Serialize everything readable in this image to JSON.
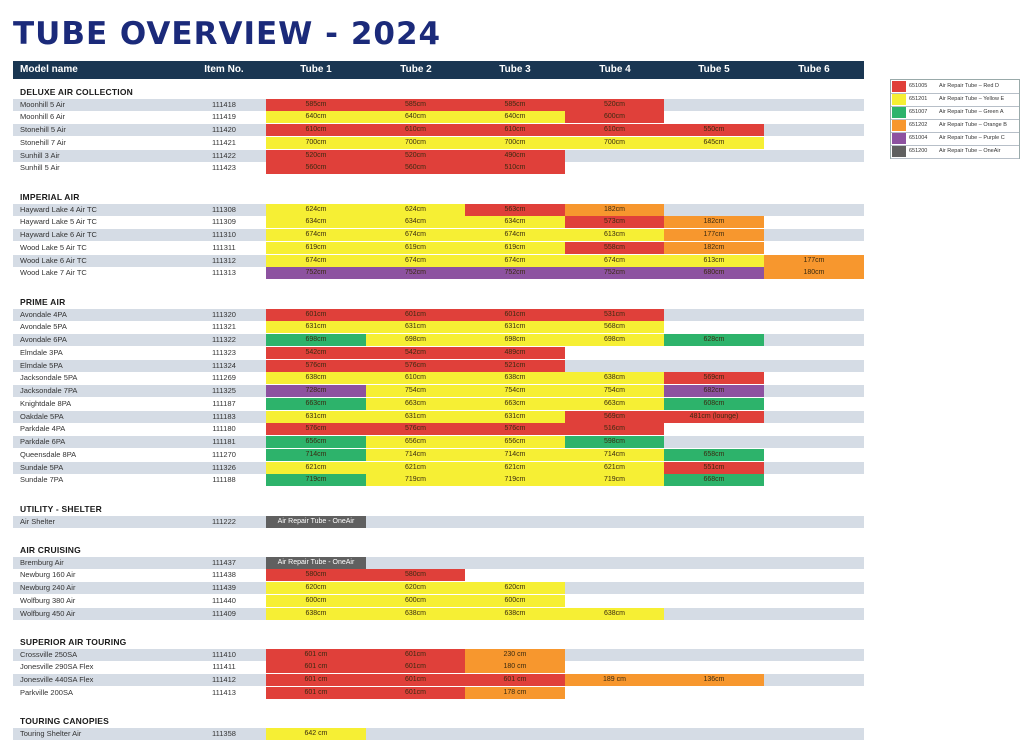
{
  "title": "TUBE OVERVIEW - 2024",
  "headers": [
    "Model name",
    "Item No.",
    "Tube 1",
    "Tube 2",
    "Tube 3",
    "Tube 4",
    "Tube 5",
    "Tube 6"
  ],
  "colors": {
    "R": "#e0403a",
    "Y": "#f6ef34",
    "G": "#2db36b",
    "O": "#f7972e",
    "P": "#8d52a0",
    "D": "#606060",
    "header": "#1a3652",
    "shade": "#d5dce5",
    "title": "#1b2a7a"
  },
  "legend": [
    {
      "code": "651005",
      "name": "Air Repair Tube – Red D",
      "color": "R"
    },
    {
      "code": "651201",
      "name": "Air Repair Tube – Yellow E",
      "color": "Y"
    },
    {
      "code": "651007",
      "name": "Air Repair Tube – Green A",
      "color": "G"
    },
    {
      "code": "651202",
      "name": "Air Repair Tube – Orange B",
      "color": "O"
    },
    {
      "code": "651004",
      "name": "Air Repair Tube – Purple C",
      "color": "P"
    },
    {
      "code": "651200",
      "name": "Air Repair Tube – OneAir",
      "color": "D"
    }
  ],
  "sections": [
    {
      "title": "DELUXE AIR COLLECTION",
      "rows": [
        {
          "name": "Moonhill 5 Air",
          "item": "111418",
          "tubes": [
            [
              "585cm",
              "R"
            ],
            [
              "585cm",
              "R"
            ],
            [
              "585cm",
              "R"
            ],
            [
              "520cm",
              "R"
            ]
          ]
        },
        {
          "name": "Moonhill 6 Air",
          "item": "111419",
          "tubes": [
            [
              "640cm",
              "Y"
            ],
            [
              "640cm",
              "Y"
            ],
            [
              "640cm",
              "Y"
            ],
            [
              "600cm",
              "R"
            ]
          ]
        },
        {
          "name": "Stonehill 5 Air",
          "item": "111420",
          "tubes": [
            [
              "610cm",
              "R"
            ],
            [
              "610cm",
              "R"
            ],
            [
              "610cm",
              "R"
            ],
            [
              "610cm",
              "R"
            ],
            [
              "550cm",
              "R"
            ]
          ]
        },
        {
          "name": "Stonehill 7 Air",
          "item": "111421",
          "tubes": [
            [
              "700cm",
              "Y"
            ],
            [
              "700cm",
              "Y"
            ],
            [
              "700cm",
              "Y"
            ],
            [
              "700cm",
              "Y"
            ],
            [
              "645cm",
              "Y"
            ]
          ]
        },
        {
          "name": "Sunhill 3 Air",
          "item": "111422",
          "tubes": [
            [
              "520cm",
              "R"
            ],
            [
              "520cm",
              "R"
            ],
            [
              "490cm",
              "R"
            ]
          ]
        },
        {
          "name": "Sunhill 5 Air",
          "item": "111423",
          "tubes": [
            [
              "560cm",
              "R"
            ],
            [
              "560cm",
              "R"
            ],
            [
              "510cm",
              "R"
            ]
          ]
        }
      ]
    },
    {
      "title": "IMPERIAL AIR",
      "rows": [
        {
          "name": "Hayward Lake 4 Air TC",
          "item": "111308",
          "tubes": [
            [
              "624cm",
              "Y"
            ],
            [
              "624cm",
              "Y"
            ],
            [
              "563cm",
              "R"
            ],
            [
              "182cm",
              "O"
            ]
          ]
        },
        {
          "name": "Hayward Lake 5 Air TC",
          "item": "111309",
          "tubes": [
            [
              "634cm",
              "Y"
            ],
            [
              "634cm",
              "Y"
            ],
            [
              "634cm",
              "Y"
            ],
            [
              "573cm",
              "R"
            ],
            [
              "182cm",
              "O"
            ]
          ]
        },
        {
          "name": "Hayward Lake 6 Air TC",
          "item": "111310",
          "tubes": [
            [
              "674cm",
              "Y"
            ],
            [
              "674cm",
              "Y"
            ],
            [
              "674cm",
              "Y"
            ],
            [
              "613cm",
              "Y"
            ],
            [
              "177cm",
              "O"
            ]
          ]
        },
        {
          "name": "Wood Lake 5 Air TC",
          "item": "111311",
          "tubes": [
            [
              "619cm",
              "Y"
            ],
            [
              "619cm",
              "Y"
            ],
            [
              "619cm",
              "Y"
            ],
            [
              "558cm",
              "R"
            ],
            [
              "182cm",
              "O"
            ]
          ]
        },
        {
          "name": "Wood Lake 6 Air TC",
          "item": "111312",
          "tubes": [
            [
              "674cm",
              "Y"
            ],
            [
              "674cm",
              "Y"
            ],
            [
              "674cm",
              "Y"
            ],
            [
              "674cm",
              "Y"
            ],
            [
              "613cm",
              "Y"
            ],
            [
              "177cm",
              "O"
            ]
          ]
        },
        {
          "name": "Wood Lake 7 Air TC",
          "item": "111313",
          "tubes": [
            [
              "752cm",
              "P"
            ],
            [
              "752cm",
              "P"
            ],
            [
              "752cm",
              "P"
            ],
            [
              "752cm",
              "P"
            ],
            [
              "680cm",
              "P"
            ],
            [
              "180cm",
              "O"
            ]
          ]
        }
      ]
    },
    {
      "title": "PRIME AIR",
      "rows": [
        {
          "name": "Avondale 4PA",
          "item": "111320",
          "tubes": [
            [
              "601cm",
              "R"
            ],
            [
              "601cm",
              "R"
            ],
            [
              "601cm",
              "R"
            ],
            [
              "531cm",
              "R"
            ]
          ]
        },
        {
          "name": "Avondale 5PA",
          "item": "111321",
          "tubes": [
            [
              "631cm",
              "Y"
            ],
            [
              "631cm",
              "Y"
            ],
            [
              "631cm",
              "Y"
            ],
            [
              "568cm",
              "Y"
            ]
          ]
        },
        {
          "name": "Avondale 6PA",
          "item": "111322",
          "tubes": [
            [
              "698cm",
              "G"
            ],
            [
              "698cm",
              "Y"
            ],
            [
              "698cm",
              "Y"
            ],
            [
              "698cm",
              "Y"
            ],
            [
              "628cm",
              "G"
            ]
          ]
        },
        {
          "name": "Elmdale 3PA",
          "item": "111323",
          "tubes": [
            [
              "542cm",
              "R"
            ],
            [
              "542cm",
              "R"
            ],
            [
              "489cm",
              "R"
            ]
          ]
        },
        {
          "name": "Elmdale 5PA",
          "item": "111324",
          "tubes": [
            [
              "576cm",
              "R"
            ],
            [
              "576cm",
              "R"
            ],
            [
              "521cm",
              "R"
            ]
          ]
        },
        {
          "name": "Jacksondale 5PA",
          "item": "111269",
          "tubes": [
            [
              "638cm",
              "Y"
            ],
            [
              "610cm",
              "Y"
            ],
            [
              "638cm",
              "Y"
            ],
            [
              "638cm",
              "Y"
            ],
            [
              "569cm",
              "R"
            ]
          ]
        },
        {
          "name": "Jacksondale 7PA",
          "item": "111325",
          "tubes": [
            [
              "728cm",
              "P"
            ],
            [
              "754cm",
              "Y"
            ],
            [
              "754cm",
              "Y"
            ],
            [
              "754cm",
              "Y"
            ],
            [
              "682cm",
              "P"
            ]
          ]
        },
        {
          "name": "Knightdale 8PA",
          "item": "111187",
          "tubes": [
            [
              "663cm",
              "G"
            ],
            [
              "663cm",
              "Y"
            ],
            [
              "663cm",
              "Y"
            ],
            [
              "663cm",
              "Y"
            ],
            [
              "608cm",
              "G"
            ]
          ]
        },
        {
          "name": "Oakdale 5PA",
          "item": "111183",
          "tubes": [
            [
              "631cm",
              "Y"
            ],
            [
              "631cm",
              "Y"
            ],
            [
              "631cm",
              "Y"
            ],
            [
              "569cm",
              "R"
            ],
            [
              "481cm (lounge)",
              "R"
            ]
          ]
        },
        {
          "name": "Parkdale 4PA",
          "item": "111180",
          "tubes": [
            [
              "576cm",
              "R"
            ],
            [
              "576cm",
              "R"
            ],
            [
              "576cm",
              "R"
            ],
            [
              "516cm",
              "R"
            ]
          ]
        },
        {
          "name": "Parkdale 6PA",
          "item": "111181",
          "tubes": [
            [
              "656cm",
              "G"
            ],
            [
              "656cm",
              "Y"
            ],
            [
              "656cm",
              "Y"
            ],
            [
              "598cm",
              "G"
            ]
          ]
        },
        {
          "name": "Queensdale 8PA",
          "item": "111270",
          "tubes": [
            [
              "714cm",
              "G"
            ],
            [
              "714cm",
              "Y"
            ],
            [
              "714cm",
              "Y"
            ],
            [
              "714cm",
              "Y"
            ],
            [
              "658cm",
              "G"
            ]
          ]
        },
        {
          "name": "Sundale 5PA",
          "item": "111326",
          "tubes": [
            [
              "621cm",
              "Y"
            ],
            [
              "621cm",
              "Y"
            ],
            [
              "621cm",
              "Y"
            ],
            [
              "621cm",
              "Y"
            ],
            [
              "551cm",
              "R"
            ]
          ]
        },
        {
          "name": "Sundale 7PA",
          "item": "111188",
          "tubes": [
            [
              "719cm",
              "G"
            ],
            [
              "719cm",
              "Y"
            ],
            [
              "719cm",
              "Y"
            ],
            [
              "719cm",
              "Y"
            ],
            [
              "668cm",
              "G"
            ]
          ]
        }
      ]
    },
    {
      "title": "UTILITY - SHELTER",
      "rows": [
        {
          "name": "Air Shelter",
          "item": "111222",
          "tubes": [
            [
              "Air Repair Tube - OneAir",
              "D"
            ]
          ]
        }
      ]
    },
    {
      "title": "AIR CRUISING",
      "rows": [
        {
          "name": "Bremburg Air",
          "item": "111437",
          "tubes": [
            [
              "Air Repair Tube - OneAir",
              "D"
            ]
          ]
        },
        {
          "name": "Newburg 160 Air",
          "item": "111438",
          "tubes": [
            [
              "580cm",
              "R"
            ],
            [
              "580cm",
              "R"
            ]
          ]
        },
        {
          "name": "Newburg 240 Air",
          "item": "111439",
          "tubes": [
            [
              "620cm",
              "Y"
            ],
            [
              "620cm",
              "Y"
            ],
            [
              "620cm",
              "Y"
            ]
          ]
        },
        {
          "name": "Wolfburg 380 Air",
          "item": "111440",
          "tubes": [
            [
              "600cm",
              "Y"
            ],
            [
              "600cm",
              "Y"
            ],
            [
              "600cm",
              "Y"
            ]
          ]
        },
        {
          "name": "Wolfburg 450 Air",
          "item": "111409",
          "tubes": [
            [
              "638cm",
              "Y"
            ],
            [
              "638cm",
              "Y"
            ],
            [
              "638cm",
              "Y"
            ],
            [
              "638cm",
              "Y"
            ]
          ]
        }
      ]
    },
    {
      "title": "SUPERIOR AIR TOURING",
      "rows": [
        {
          "name": "Crossville 250SA",
          "item": "111410",
          "tubes": [
            [
              "601 cm",
              "R"
            ],
            [
              "601cm",
              "R"
            ],
            [
              "230 cm",
              "O"
            ]
          ]
        },
        {
          "name": "Jonesville 290SA Flex",
          "item": "111411",
          "tubes": [
            [
              "601 cm",
              "R"
            ],
            [
              "601cm",
              "R"
            ],
            [
              "180 cm",
              "O"
            ]
          ]
        },
        {
          "name": "Jonesville 440SA Flex",
          "item": "111412",
          "tubes": [
            [
              "601 cm",
              "R"
            ],
            [
              "601cm",
              "R"
            ],
            [
              "601 cm",
              "R"
            ],
            [
              "189 cm",
              "O"
            ],
            [
              "136cm",
              "O"
            ]
          ]
        },
        {
          "name": "Parkville 200SA",
          "item": "111413",
          "tubes": [
            [
              "601 cm",
              "R"
            ],
            [
              "601cm",
              "R"
            ],
            [
              "178 cm",
              "O"
            ]
          ]
        }
      ]
    },
    {
      "title": "TOURING CANOPIES",
      "rows": [
        {
          "name": "Touring Shelter Air",
          "item": "111358",
          "tubes": [
            [
              "642 cm",
              "Y"
            ]
          ]
        }
      ]
    }
  ]
}
